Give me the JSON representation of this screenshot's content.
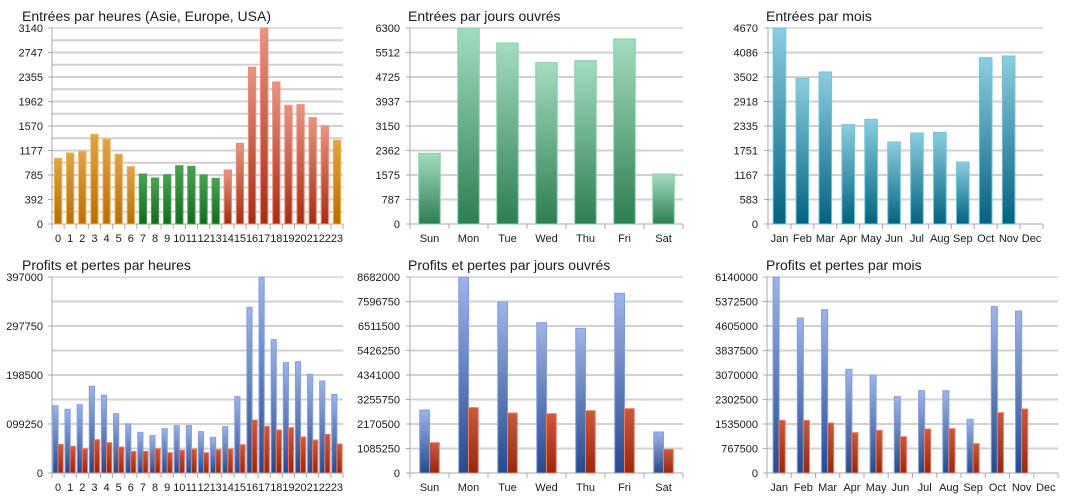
{
  "colors": {
    "orange": "#d08a20",
    "green": "#2e8a3a",
    "red": "#c2482d",
    "mint": "#58b583",
    "teal": "#2b8aa9",
    "blue": "#3b5ea8",
    "loss_red": "#b33a22"
  },
  "chart_data": [
    {
      "id": "entries-hour",
      "type": "bar",
      "title": "Entrées par heures (Asie, Europe, USA)",
      "categories": [
        "0",
        "1",
        "2",
        "3",
        "4",
        "5",
        "6",
        "7",
        "8",
        "9",
        "10",
        "11",
        "12",
        "13",
        "14",
        "15",
        "16",
        "17",
        "18",
        "19",
        "20",
        "21",
        "22",
        "23"
      ],
      "series": [
        {
          "name": "Entrées",
          "values": [
            1052,
            1137,
            1165,
            1437,
            1357,
            1117,
            918,
            801,
            737,
            790,
            934,
            924,
            785,
            731,
            865,
            1293,
            2510,
            3140,
            2275,
            1901,
            1911,
            1703,
            1570,
            1341
          ]
        }
      ],
      "bar_regions": [
        "Asie",
        "Asie",
        "Asie",
        "Asie",
        "Asie",
        "Asie",
        "Asie",
        "Europe",
        "Europe",
        "Europe",
        "Europe",
        "Europe",
        "Europe",
        "Europe",
        "USA",
        "USA",
        "USA",
        "USA",
        "USA",
        "USA",
        "USA",
        "USA",
        "USA",
        "Asie"
      ],
      "ylim": [
        0,
        3140
      ],
      "yticks": [
        "0",
        "392",
        "785",
        "1177",
        "1570",
        "1962",
        "2355",
        "2747",
        "3140"
      ],
      "grid": true,
      "legend": "none"
    },
    {
      "id": "entries-weekday",
      "type": "bar",
      "title": "Entrées par jours ouvrés",
      "categories": [
        "Sun",
        "Mon",
        "Tue",
        "Wed",
        "Thu",
        "Fri",
        "Sat"
      ],
      "series": [
        {
          "name": "Entrées",
          "values": [
            2271,
            6300,
            5818,
            5186,
            5250,
            5946,
            1607
          ]
        }
      ],
      "ylim": [
        0,
        6300
      ],
      "yticks": [
        "0",
        "787",
        "1575",
        "2362",
        "3150",
        "3937",
        "4725",
        "5512",
        "6300"
      ],
      "grid": true,
      "legend": "none"
    },
    {
      "id": "entries-month",
      "type": "bar",
      "title": "Entrées par mois",
      "categories": [
        "Jan",
        "Feb",
        "Mar",
        "Apr",
        "May",
        "Jun",
        "Jul",
        "Aug",
        "Sep",
        "Oct",
        "Nov",
        "Dec"
      ],
      "series": [
        {
          "name": "Entrées",
          "values": [
            4670,
            3471,
            3622,
            2367,
            2494,
            1954,
            2168,
            2184,
            1477,
            3963,
            4003,
            0
          ]
        }
      ],
      "ylim": [
        0,
        4670
      ],
      "yticks": [
        "0",
        "583",
        "1167",
        "1751",
        "2335",
        "2918",
        "3502",
        "4086",
        "4670"
      ],
      "grid": true,
      "legend": "none"
    },
    {
      "id": "pl-hour",
      "type": "bar",
      "title": "Profits et pertes par heures",
      "categories": [
        "0",
        "1",
        "2",
        "3",
        "4",
        "5",
        "6",
        "7",
        "8",
        "9",
        "10",
        "11",
        "12",
        "13",
        "14",
        "15",
        "16",
        "17",
        "18",
        "19",
        "20",
        "21",
        "22",
        "23"
      ],
      "series": [
        {
          "name": "Profits",
          "values": [
            136384,
            128957,
            138409,
            175541,
            157312,
            120180,
            99250,
            82369,
            75617,
            89795,
            95872,
            95872,
            83720,
            72240,
            93847,
            154610,
            335560,
            397000,
            270068,
            223482,
            225507,
            199850,
            186347,
            159340
          ]
        },
        {
          "name": "Pertes",
          "values": [
            58064,
            54014,
            49288,
            67517,
            61440,
            52663,
            43886,
            43886,
            49288,
            41185,
            45912,
            48612,
            41185,
            47262,
            48612,
            57389,
            107351,
            94523,
            87097,
            91823,
            72918,
            66842,
            78320,
            58740
          ]
        }
      ],
      "ylim": [
        0,
        397000
      ],
      "yticks": [
        "0",
        "099250",
        "198500",
        "297750",
        "397000"
      ],
      "grid": true,
      "legend": "none"
    },
    {
      "id": "pl-weekday",
      "type": "bar",
      "title": "Profits et pertes par jours ouvrés",
      "categories": [
        "Sun",
        "Mon",
        "Tue",
        "Wed",
        "Thu",
        "Fri",
        "Sat"
      ],
      "series": [
        {
          "name": "Profits",
          "values": [
            2790643,
            8682000,
            7574605,
            6659143,
            6408133,
            7958500,
            1816133
          ]
        },
        {
          "name": "Pertes",
          "values": [
            1343622,
            2894000,
            2657755,
            2628224,
            2761112,
            2849704,
            1048316
          ]
        }
      ],
      "ylim": [
        0,
        8682000
      ],
      "yticks": [
        "0",
        "1085250",
        "2170500",
        "3255750",
        "4341000",
        "5426250",
        "6511500",
        "7596750",
        "8682000"
      ],
      "grid": true,
      "legend": "none"
    },
    {
      "id": "pl-month",
      "type": "bar",
      "title": "Profits et pertes par mois",
      "categories": [
        "Jan",
        "Feb",
        "Mar",
        "Apr",
        "May",
        "Jun",
        "Jul",
        "Aug",
        "Sep",
        "Oct",
        "Nov",
        "Dec"
      ],
      "series": [
        {
          "name": "Profits",
          "values": [
            6140000,
            4855612,
            5116667,
            3247517,
            3049116,
            2391259,
            2579218,
            2579218,
            1681190,
            5210646,
            5074898,
            0
          ]
        },
        {
          "name": "Pertes",
          "values": [
            1649864,
            1649864,
            1566327,
            1263503,
            1336599,
            1138197,
            1378367,
            1388810,
            919048,
            1890034,
            2004898,
            0
          ]
        }
      ],
      "ylim": [
        0,
        6140000
      ],
      "yticks": [
        "0",
        "767500",
        "1535000",
        "2302500",
        "3070000",
        "3837500",
        "4605000",
        "5372500",
        "6140000"
      ],
      "grid": true,
      "legend": "none"
    }
  ]
}
